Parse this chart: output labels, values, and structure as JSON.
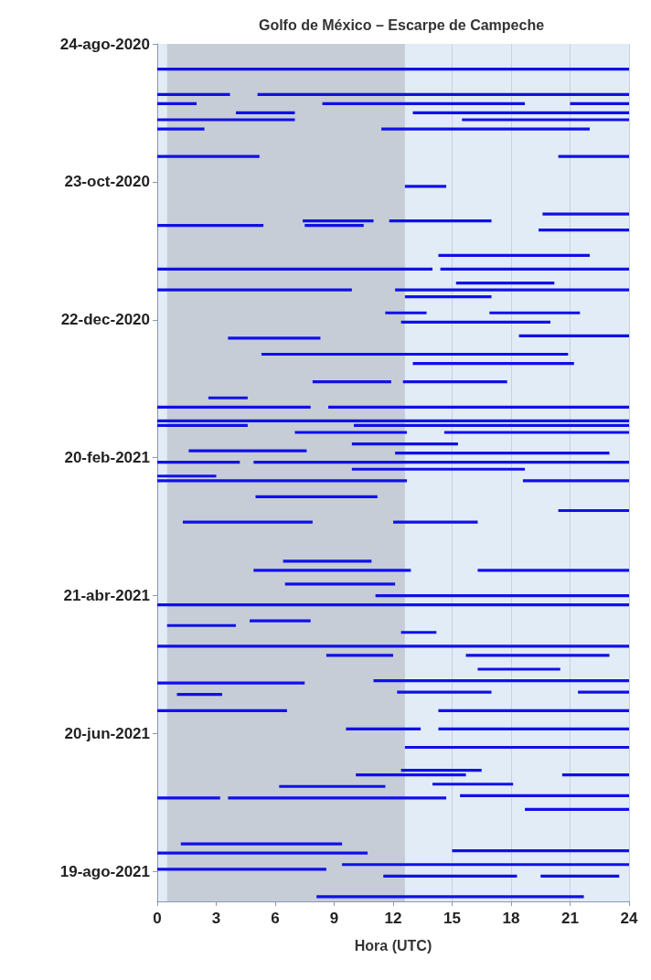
{
  "chart_data": {
    "type": "bar",
    "orientation": "horizontal",
    "title": "Golfo de México – Escarpe de Campeche",
    "xlabel": "Hora (UTC)",
    "xlim": [
      0,
      24
    ],
    "xticks": [
      0,
      3,
      6,
      9,
      12,
      15,
      18,
      21,
      24
    ],
    "ylim": [
      "2021-09-01",
      "2020-08-24"
    ],
    "yticks": [
      {
        "value": "2020-08-24",
        "label": "24-ago-2020"
      },
      {
        "value": "2020-10-23",
        "label": "23-oct-2020"
      },
      {
        "value": "2020-12-22",
        "label": "22-dec-2020"
      },
      {
        "value": "2021-02-20",
        "label": "20-feb-2021"
      },
      {
        "value": "2021-04-21",
        "label": "21-abr-2021"
      },
      {
        "value": "2021-06-20",
        "label": "20-jun-2021"
      },
      {
        "value": "2021-08-19",
        "label": "19-ago-2021"
      }
    ],
    "grid": "x",
    "bands": [
      {
        "axis": "x",
        "from": 0.5,
        "to": 12.6,
        "color": "#c6cdd6"
      }
    ],
    "series": [
      {
        "color": "#1010e8",
        "x": [
          "2020-09-04",
          "2020-09-15",
          "2020-09-19",
          "2020-09-23",
          "2020-09-26",
          "2020-09-30",
          "2020-10-12",
          "2020-10-25",
          "2020-11-06",
          "2020-11-09",
          "2020-11-11",
          "2020-11-13",
          "2020-11-24",
          "2020-11-30",
          "2020-12-06",
          "2020-12-09",
          "2020-12-12",
          "2020-12-19",
          "2020-12-23",
          "2020-12-29",
          "2020-12-30",
          "2021-01-06",
          "2021-01-10",
          "2021-01-18",
          "2021-01-25",
          "2021-01-29",
          "2021-02-04",
          "2021-02-06",
          "2021-02-09",
          "2021-02-14",
          "2021-02-17",
          "2021-02-18",
          "2021-02-22",
          "2021-02-25",
          "2021-02-28",
          "2021-03-02",
          "2021-03-09",
          "2021-03-15",
          "2021-03-20",
          "2021-04-06",
          "2021-04-10",
          "2021-04-16",
          "2021-04-21",
          "2021-04-25",
          "2021-05-02",
          "2021-05-04",
          "2021-05-07",
          "2021-05-13",
          "2021-05-17",
          "2021-05-23",
          "2021-05-28",
          "2021-05-29",
          "2021-06-02",
          "2021-06-03",
          "2021-06-10",
          "2021-06-18",
          "2021-06-26",
          "2021-07-06",
          "2021-07-08",
          "2021-07-12",
          "2021-07-13",
          "2021-07-17",
          "2021-07-18",
          "2021-07-23",
          "2021-08-07",
          "2021-08-10",
          "2021-08-11",
          "2021-08-16",
          "2021-08-18",
          "2021-08-21",
          "2021-08-30"
        ],
        "base": [
          0,
          0,
          0,
          4,
          0,
          0,
          0,
          12.6,
          19.6,
          7.4,
          0,
          19.4,
          14.3,
          0,
          15.2,
          0,
          12.6,
          11.6,
          12.4,
          18.4,
          3.6,
          5.3,
          13,
          7.9,
          2.6,
          0,
          0,
          0,
          7,
          9.9,
          1.6,
          12.1,
          0,
          9.9,
          0,
          0,
          5,
          20.4,
          1.3,
          6.4,
          4.9,
          6.5,
          11.1,
          0,
          4.7,
          0.5,
          12.4,
          0,
          8.6,
          16.3,
          11,
          0,
          12.2,
          1,
          0,
          9.6,
          12.6,
          12.4,
          10.1,
          14,
          6.2,
          15.4,
          0,
          18.7,
          1.2,
          15,
          0,
          9.4,
          0,
          11.5,
          8.1
        ],
        "values": [
          24,
          3.7,
          2,
          3,
          7,
          2.4,
          5.2,
          2.1,
          4.4,
          3.6,
          5.4,
          4.6,
          7.7,
          14,
          5,
          9.9,
          4.4,
          2.1,
          7.6,
          5.6,
          4.7,
          15.6,
          8.2,
          4,
          2,
          7.8,
          24,
          4.6,
          5.7,
          5.4,
          6,
          10.9,
          4.2,
          8.8,
          3,
          12.7,
          6.2,
          3.6,
          6.6,
          4.5,
          8,
          5.6,
          12.9,
          24,
          3.1,
          3.5,
          1.8,
          24,
          3.4,
          4.2,
          13,
          7.5,
          4.8,
          2.3,
          6.6,
          3.8,
          11.4,
          4.1,
          5.6,
          4.1,
          5.4,
          8.6,
          3.2,
          5.3,
          8.2,
          9,
          10.7,
          14.6,
          8.6,
          6.8,
          13.6
        ]
      },
      {
        "color": "#1010e8",
        "x": [
          "2020-09-15",
          "2020-09-19",
          "2020-09-23",
          "2020-09-26",
          "2020-09-30",
          "2020-10-12",
          "2020-11-09",
          "2020-11-11",
          "2020-11-30",
          "2020-12-09",
          "2020-12-19",
          "2021-01-18",
          "2021-01-29",
          "2021-02-06",
          "2021-02-09",
          "2021-02-22",
          "2021-03-02",
          "2021-03-20",
          "2021-04-10",
          "2021-05-17",
          "2021-06-02",
          "2021-06-10",
          "2021-06-18",
          "2021-07-08",
          "2021-07-18",
          "2021-08-21"
        ],
        "base": [
          5.1,
          8.4,
          13,
          15.5,
          11.4,
          20.4,
          11.8,
          7.5,
          14.4,
          12.1,
          16.9,
          12.5,
          8.7,
          10,
          14.6,
          4.9,
          18.6,
          12,
          16.3,
          15.7,
          21.4,
          14.3,
          14.3,
          20.6,
          3.6,
          19.5
        ],
        "values": [
          18.9,
          10.3,
          11,
          8.5,
          10.6,
          3.6,
          5.2,
          3,
          9.6,
          11.9,
          4.6,
          5.3,
          15.3,
          14,
          9.4,
          19.1,
          5.4,
          4.3,
          7.7,
          7.3,
          2.6,
          9.7,
          9.7,
          3.4,
          11.1,
          4
        ]
      },
      {
        "color": "#1010e8",
        "x": [
          "2020-09-19"
        ],
        "base": [
          21
        ],
        "values": [
          3
        ]
      }
    ]
  }
}
